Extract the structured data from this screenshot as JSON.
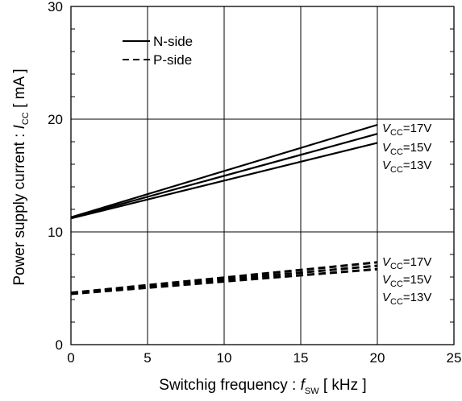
{
  "chart_data": {
    "type": "line",
    "xlabel": "Switchig frequency : fSW [ kHz ]",
    "xlabel_parts": {
      "pre": "Switchig frequency : ",
      "var": "f",
      "sub": "SW",
      "post": " [ kHz ]"
    },
    "ylabel": "Power supply current : ICC [ mA ]",
    "ylabel_parts": {
      "pre": "Power supply current : ",
      "var": "I",
      "sub": "CC",
      "post": " [ mA ]"
    },
    "xlim": [
      0,
      25
    ],
    "ylim": [
      0,
      30
    ],
    "x_ticks": [
      0,
      5,
      10,
      15,
      20,
      25
    ],
    "y_ticks": [
      0,
      10,
      20,
      30
    ],
    "grid": true,
    "legend_position": "top-left",
    "legend": [
      {
        "label": "N-side",
        "style": "solid"
      },
      {
        "label": "P-side",
        "style": "dashed"
      }
    ],
    "series": [
      {
        "side": "N-side",
        "vcc": "17V",
        "style": "solid",
        "x": [
          0,
          20
        ],
        "y": [
          11.3,
          19.5
        ]
      },
      {
        "side": "N-side",
        "vcc": "15V",
        "style": "solid",
        "x": [
          0,
          20
        ],
        "y": [
          11.25,
          18.7
        ]
      },
      {
        "side": "N-side",
        "vcc": "13V",
        "style": "solid",
        "x": [
          0,
          20
        ],
        "y": [
          11.2,
          17.9
        ]
      },
      {
        "side": "P-side",
        "vcc": "17V",
        "style": "dashed",
        "x": [
          0,
          20
        ],
        "y": [
          4.6,
          7.3
        ]
      },
      {
        "side": "P-side",
        "vcc": "15V",
        "style": "dashed",
        "x": [
          0,
          20
        ],
        "y": [
          4.55,
          7.0
        ]
      },
      {
        "side": "P-side",
        "vcc": "13V",
        "style": "dashed",
        "x": [
          0,
          20
        ],
        "y": [
          4.5,
          6.7
        ]
      }
    ],
    "annotations": [
      {
        "group": "N-side",
        "var": "V",
        "sub": "CC",
        "text": "=17V"
      },
      {
        "group": "N-side",
        "var": "V",
        "sub": "CC",
        "text": "=15V"
      },
      {
        "group": "N-side",
        "var": "V",
        "sub": "CC",
        "text": "=13V"
      },
      {
        "group": "P-side",
        "var": "V",
        "sub": "CC",
        "text": "=17V"
      },
      {
        "group": "P-side",
        "var": "V",
        "sub": "CC",
        "text": "=15V"
      },
      {
        "group": "P-side",
        "var": "V",
        "sub": "CC",
        "text": "=13V"
      }
    ],
    "colors": {
      "line": "#000000",
      "grid": "#000000",
      "background": "#ffffff"
    }
  }
}
